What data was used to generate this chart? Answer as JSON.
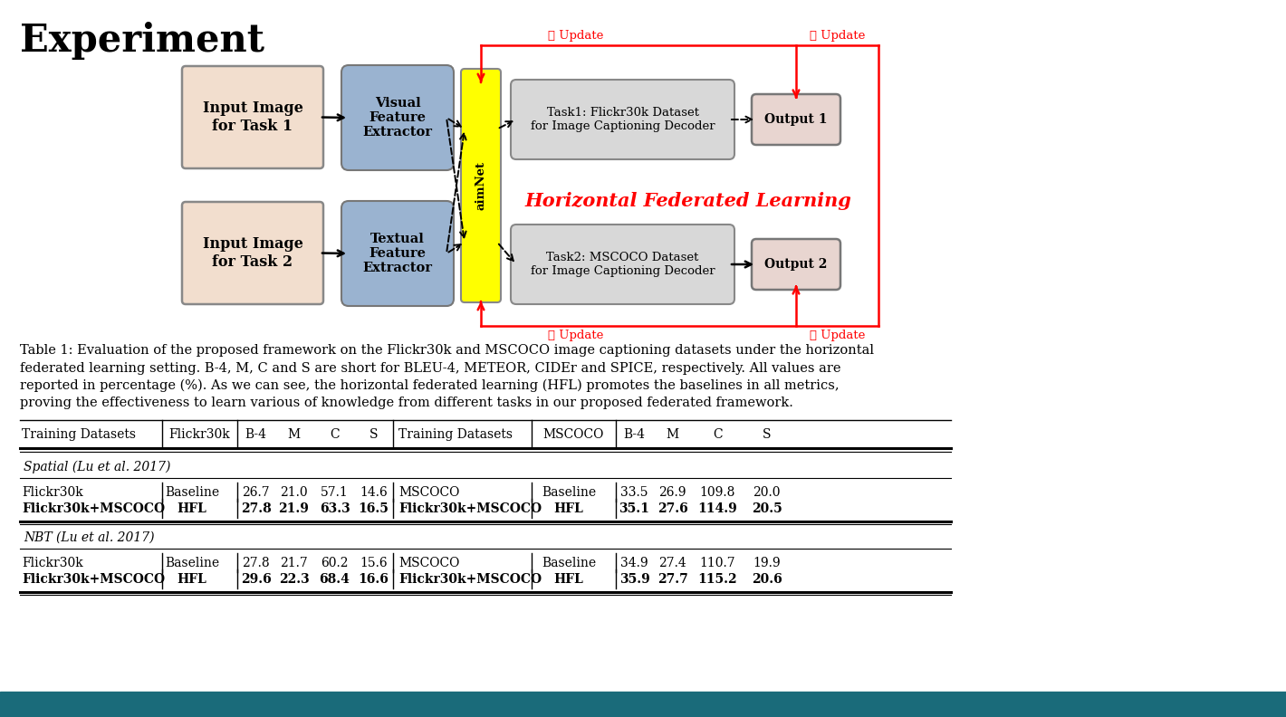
{
  "title": "Experiment",
  "bg_color": "#ffffff",
  "teal_bar_color": "#1a6b7a",
  "section1_label": "Spatial (Lu et al. 2017)",
  "section2_label": "NBT (Lu et al. 2017)",
  "caption_lines": [
    "Table 1: Evaluation of the proposed framework on the Flickr30k and MSCOCO image captioning datasets under the horizontal",
    "federated learning setting. B-4, M, C and S are short for BLEU-4, METEOR, CIDEr and SPICE, respectively. All values are",
    "reported in percentage (%). As we can see, the horizontal federated learning (HFL) promotes the baselines in all metrics,",
    "proving the effectiveness to learn various of knowledge from different tasks in our proposed federated framework."
  ],
  "rows": [
    [
      "Flickr30k",
      "Baseline",
      "26.7",
      "21.0",
      "57.1",
      "14.6",
      "MSCOCO",
      "Baseline",
      "33.5",
      "26.9",
      "109.8",
      "20.0"
    ],
    [
      "Flickr30k+MSCOCO",
      "HFL",
      "27.8",
      "21.9",
      "63.3",
      "16.5",
      "Flickr30k+MSCOCO",
      "HFL",
      "35.1",
      "27.6",
      "114.9",
      "20.5"
    ],
    [
      "Flickr30k",
      "Baseline",
      "27.8",
      "21.7",
      "60.2",
      "15.6",
      "MSCOCO",
      "Baseline",
      "34.9",
      "27.4",
      "110.7",
      "19.9"
    ],
    [
      "Flickr30k+MSCOCO",
      "HFL",
      "29.6",
      "22.3",
      "68.4",
      "16.6",
      "Flickr30k+MSCOCO",
      "HFL",
      "35.9",
      "27.7",
      "115.2",
      "20.6"
    ]
  ],
  "bold_rows": [
    1,
    3
  ],
  "diagram": {
    "input1_text": "Input Image\nfor Task 1",
    "input2_text": "Input Image\nfor Task 2",
    "visual_text": "Visual\nFeature\nExtractor",
    "textual_text": "Textual\nFeature\nExtractor",
    "aimnet_text": "aimNet",
    "task1_text": "Task1: Flickr30k Dataset\nfor Image Captioning Decoder",
    "task2_text": "Task2: MSCOCO Dataset\nfor Image Captioning Decoder",
    "output1_text": "Output 1",
    "output2_text": "Output 2",
    "hfl_text": "Horizontal Federated Learning",
    "update1_text": "① Update",
    "update2_text": "② Update",
    "update3_text": "③ Update",
    "update4_text": "④ Update",
    "input_color": "#f2dece",
    "visual_color": "#9ab3d0",
    "textual_color": "#9ab3d0",
    "aimnet_color": "#ffff00",
    "task_color": "#d8d8d8",
    "output_color": "#e8d5d0",
    "hfl_color": "#ff0000",
    "update_color": "#ff0000"
  }
}
